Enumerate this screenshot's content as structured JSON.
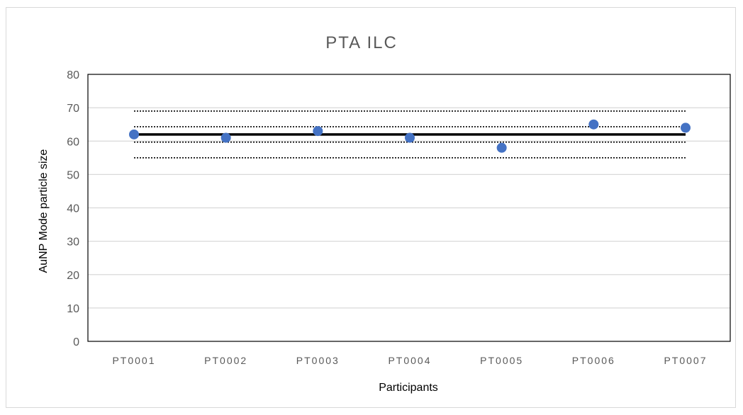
{
  "chart_data": {
    "type": "scatter",
    "title": "PTA ILC",
    "xlabel": "Participants",
    "ylabel": "AuNP Mode particle size",
    "categories": [
      "PT0001",
      "PT0002",
      "PT0003",
      "PT0004",
      "PT0005",
      "PT0006",
      "PT0007"
    ],
    "ylim": [
      0,
      80
    ],
    "yticks": [
      0,
      10,
      20,
      30,
      40,
      50,
      60,
      70,
      80
    ],
    "grid": true,
    "legend": "none",
    "series": [
      {
        "values": [
          62,
          61,
          63,
          61,
          58,
          65,
          64
        ],
        "color": "#4472c4"
      }
    ],
    "reference_lines": [
      {
        "value": 62,
        "style": "solid",
        "color": "#000000"
      },
      {
        "value": 69,
        "style": "dotted",
        "color": "#000000"
      },
      {
        "value": 64.3,
        "style": "dotted",
        "color": "#000000"
      },
      {
        "value": 59.7,
        "style": "dotted",
        "color": "#000000"
      },
      {
        "value": 55,
        "style": "dotted",
        "color": "#000000"
      }
    ]
  }
}
